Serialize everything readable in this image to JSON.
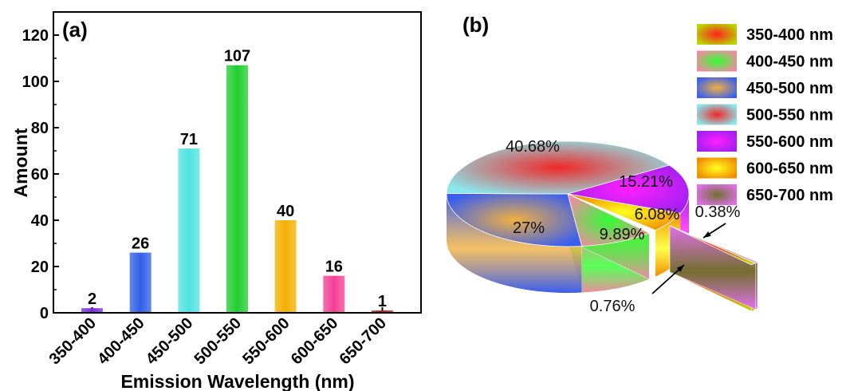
{
  "chart_data": [
    {
      "type": "bar",
      "panel_label": "(a)",
      "categories": [
        "350-400",
        "400-450",
        "450-500",
        "500-550",
        "550-600",
        "600-650",
        "650-700"
      ],
      "values": [
        2,
        26,
        71,
        107,
        40,
        16,
        1
      ],
      "data_labels": [
        "2",
        "26",
        "71",
        "107",
        "40",
        "16",
        "1"
      ],
      "colors": [
        "#7a2be0",
        "#2f5fe8",
        "#4fe3e3",
        "#1fcf2f",
        "#f4b000",
        "#f43f95",
        "#b41818"
      ],
      "xlabel": "Emission Wavelength (nm)",
      "ylabel": "Amount",
      "ylim": [
        0,
        130
      ],
      "yticks": [
        0,
        20,
        40,
        60,
        80,
        100,
        120
      ],
      "ytick_labels": [
        "0",
        "20",
        "40",
        "60",
        "80",
        "100",
        "120"
      ],
      "grid": false
    },
    {
      "type": "pie",
      "panel_label": "(b)",
      "categories": [
        "350-400 nm",
        "400-450 nm",
        "450-500 nm",
        "500-550 nm",
        "550-600 nm",
        "600-650 nm",
        "650-700 nm"
      ],
      "values": [
        0.76,
        9.89,
        27,
        40.68,
        15.21,
        6.08,
        0.38
      ],
      "slice_labels": [
        "0.76%",
        "9.89%",
        "27%",
        "40.68%",
        "15.21%",
        "6.08%",
        "0.38%"
      ],
      "legend": "top-right",
      "colors": [
        {
          "outer": "#b8d800",
          "inner": "#ff2020"
        },
        {
          "outer": "#f08aa0",
          "inner": "#30ff30"
        },
        {
          "outer": "#3a5ef0",
          "inner": "#f0b040"
        },
        {
          "outer": "#8ae8ee",
          "inner": "#f02828"
        },
        {
          "outer": "#a020f0",
          "inner": "#ff20ff"
        },
        {
          "outer": "#f08a00",
          "inner": "#ffff20"
        },
        {
          "outer": "#e070e8",
          "inner": "#707030"
        }
      ]
    }
  ]
}
